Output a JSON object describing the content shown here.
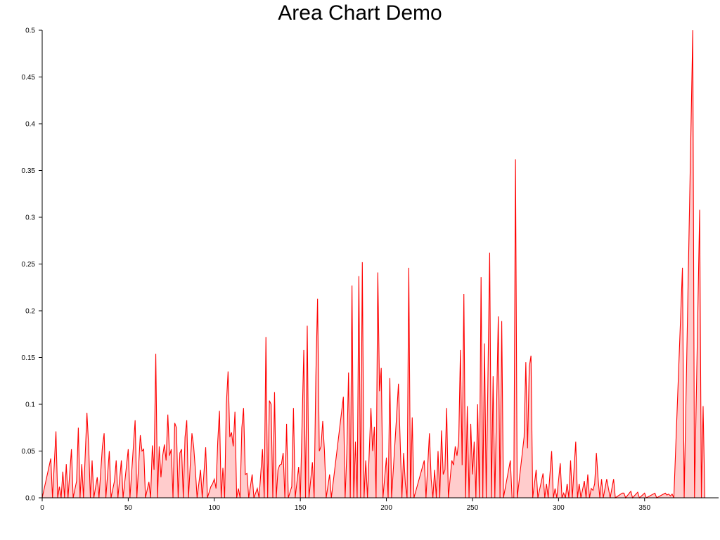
{
  "chart_data": {
    "type": "area",
    "title": "Area Chart Demo",
    "xlabel": "",
    "ylabel": "",
    "xlim": [
      0,
      393
    ],
    "ylim": [
      0,
      0.5
    ],
    "x_ticks": [
      "0",
      "50",
      "100",
      "150",
      "200",
      "250",
      "300",
      "350"
    ],
    "y_ticks": [
      "0.0",
      "0.05",
      "0.1",
      "0.15",
      "0.2",
      "0.25",
      "0.3",
      "0.35",
      "0.4",
      "0.45",
      "0.5"
    ],
    "grid": false,
    "legend": "none",
    "series": [
      {
        "color": "#ff0000",
        "fill": "#ffcccc",
        "points": [
          [
            0,
            0
          ],
          [
            5,
            0.042
          ],
          [
            6,
            0
          ],
          [
            8,
            0.071
          ],
          [
            9,
            0
          ],
          [
            10,
            0.012
          ],
          [
            11,
            0
          ],
          [
            12,
            0.028
          ],
          [
            13,
            0
          ],
          [
            14,
            0.036
          ],
          [
            15,
            0
          ],
          [
            17,
            0.052
          ],
          [
            18,
            0
          ],
          [
            20,
            0.018
          ],
          [
            21,
            0.075
          ],
          [
            22,
            0
          ],
          [
            23,
            0.036
          ],
          [
            24,
            0
          ],
          [
            26,
            0.091
          ],
          [
            27,
            0.055
          ],
          [
            28,
            0
          ],
          [
            29,
            0.04
          ],
          [
            30,
            0
          ],
          [
            32,
            0.022
          ],
          [
            33,
            0
          ],
          [
            35,
            0.055
          ],
          [
            36,
            0.069
          ],
          [
            37,
            0
          ],
          [
            39,
            0.05
          ],
          [
            40,
            0
          ],
          [
            42,
            0.018
          ],
          [
            43,
            0.04
          ],
          [
            44,
            0
          ],
          [
            46,
            0.04
          ],
          [
            47,
            0
          ],
          [
            50,
            0.052
          ],
          [
            51,
            0
          ],
          [
            54,
            0.083
          ],
          [
            55,
            0
          ],
          [
            57,
            0.067
          ],
          [
            58,
            0.05
          ],
          [
            59,
            0.052
          ],
          [
            60,
            0
          ],
          [
            62,
            0.017
          ],
          [
            63,
            0
          ],
          [
            64,
            0.056
          ],
          [
            65,
            0.03
          ],
          [
            66,
            0.154
          ],
          [
            67,
            0
          ],
          [
            68,
            0.055
          ],
          [
            69,
            0.022
          ],
          [
            70,
            0.045
          ],
          [
            71,
            0.057
          ],
          [
            72,
            0.04
          ],
          [
            73,
            0.089
          ],
          [
            74,
            0.045
          ],
          [
            75,
            0.052
          ],
          [
            76,
            0
          ],
          [
            77,
            0.08
          ],
          [
            78,
            0.075
          ],
          [
            79,
            0
          ],
          [
            80,
            0.048
          ],
          [
            81,
            0.052
          ],
          [
            82,
            0
          ],
          [
            83,
            0.065
          ],
          [
            84,
            0.083
          ],
          [
            85,
            0
          ],
          [
            87,
            0.069
          ],
          [
            88,
            0.055
          ],
          [
            89,
            0.03
          ],
          [
            90,
            0
          ],
          [
            92,
            0.03
          ],
          [
            93,
            0
          ],
          [
            95,
            0.054
          ],
          [
            96,
            0
          ],
          [
            98,
            0.012
          ],
          [
            99,
            0.015
          ],
          [
            100,
            0.02
          ],
          [
            101,
            0.01
          ],
          [
            102,
            0.06
          ],
          [
            103,
            0.093
          ],
          [
            104,
            0
          ],
          [
            105,
            0.032
          ],
          [
            106,
            0
          ],
          [
            107,
            0.1
          ],
          [
            108,
            0.135
          ],
          [
            109,
            0.065
          ],
          [
            110,
            0.07
          ],
          [
            111,
            0.055
          ],
          [
            112,
            0.092
          ],
          [
            113,
            0
          ],
          [
            114,
            0.01
          ],
          [
            115,
            0
          ],
          [
            116,
            0.075
          ],
          [
            117,
            0.096
          ],
          [
            118,
            0.025
          ],
          [
            119,
            0.026
          ],
          [
            120,
            0
          ],
          [
            122,
            0.025
          ],
          [
            123,
            0
          ],
          [
            125,
            0.01
          ],
          [
            126,
            0
          ],
          [
            128,
            0.052
          ],
          [
            129,
            0
          ],
          [
            130,
            0.172
          ],
          [
            131,
            0
          ],
          [
            132,
            0.104
          ],
          [
            133,
            0.1
          ],
          [
            134,
            0
          ],
          [
            135,
            0.113
          ],
          [
            136,
            0
          ],
          [
            137,
            0.03
          ],
          [
            138,
            0.035
          ],
          [
            139,
            0.036
          ],
          [
            140,
            0.048
          ],
          [
            141,
            0
          ],
          [
            142,
            0.079
          ],
          [
            143,
            0
          ],
          [
            145,
            0.012
          ],
          [
            146,
            0.096
          ],
          [
            147,
            0
          ],
          [
            149,
            0.033
          ],
          [
            150,
            0
          ],
          [
            152,
            0.158
          ],
          [
            153,
            0
          ],
          [
            154,
            0.184
          ],
          [
            155,
            0
          ],
          [
            157,
            0.038
          ],
          [
            158,
            0
          ],
          [
            159,
            0.13
          ],
          [
            160,
            0.213
          ],
          [
            161,
            0.05
          ],
          [
            162,
            0.055
          ],
          [
            163,
            0.082
          ],
          [
            164,
            0.05
          ],
          [
            165,
            0
          ],
          [
            167,
            0.025
          ],
          [
            168,
            0
          ],
          [
            175,
            0.108
          ],
          [
            176,
            0
          ],
          [
            177,
            0.048
          ],
          [
            178,
            0.134
          ],
          [
            179,
            0
          ],
          [
            180,
            0.227
          ],
          [
            181,
            0
          ],
          [
            182,
            0.06
          ],
          [
            183,
            0
          ],
          [
            184,
            0.237
          ],
          [
            185,
            0
          ],
          [
            186,
            0.252
          ],
          [
            187,
            0
          ],
          [
            188,
            0.04
          ],
          [
            189,
            0
          ],
          [
            191,
            0.096
          ],
          [
            192,
            0.05
          ],
          [
            193,
            0.076
          ],
          [
            194,
            0
          ],
          [
            195,
            0.241
          ],
          [
            196,
            0.114
          ],
          [
            197,
            0.139
          ],
          [
            198,
            0
          ],
          [
            200,
            0.043
          ],
          [
            201,
            0
          ],
          [
            202,
            0.128
          ],
          [
            203,
            0
          ],
          [
            206,
            0.09
          ],
          [
            207,
            0.122
          ],
          [
            208,
            0.06
          ],
          [
            209,
            0
          ],
          [
            210,
            0.048
          ],
          [
            211,
            0.015
          ],
          [
            212,
            0
          ],
          [
            213,
            0.246
          ],
          [
            214,
            0
          ],
          [
            215,
            0.086
          ],
          [
            216,
            0
          ],
          [
            222,
            0.04
          ],
          [
            223,
            0
          ],
          [
            225,
            0.069
          ],
          [
            226,
            0.02
          ],
          [
            227,
            0
          ],
          [
            228,
            0.03
          ],
          [
            229,
            0
          ],
          [
            230,
            0.05
          ],
          [
            231,
            0
          ],
          [
            232,
            0.072
          ],
          [
            233,
            0.025
          ],
          [
            234,
            0.03
          ],
          [
            235,
            0.096
          ],
          [
            236,
            0
          ],
          [
            238,
            0.04
          ],
          [
            239,
            0.035
          ],
          [
            240,
            0.055
          ],
          [
            241,
            0.045
          ],
          [
            242,
            0.06
          ],
          [
            243,
            0.158
          ],
          [
            244,
            0.035
          ],
          [
            245,
            0.218
          ],
          [
            246,
            0
          ],
          [
            247,
            0.098
          ],
          [
            248,
            0
          ],
          [
            249,
            0.079
          ],
          [
            250,
            0.025
          ],
          [
            251,
            0.06
          ],
          [
            252,
            0
          ],
          [
            253,
            0.1
          ],
          [
            254,
            0
          ],
          [
            255,
            0.236
          ],
          [
            256,
            0
          ],
          [
            257,
            0.165
          ],
          [
            258,
            0
          ],
          [
            260,
            0.262
          ],
          [
            261,
            0
          ],
          [
            262,
            0.13
          ],
          [
            263,
            0
          ],
          [
            265,
            0.194
          ],
          [
            266,
            0
          ],
          [
            267,
            0.189
          ],
          [
            268,
            0
          ],
          [
            272,
            0.04
          ],
          [
            273,
            0
          ],
          [
            274,
            0
          ],
          [
            275,
            0.362
          ],
          [
            276,
            0
          ],
          [
            280,
            0.065
          ],
          [
            281,
            0.145
          ],
          [
            282,
            0.053
          ],
          [
            283,
            0.14
          ],
          [
            284,
            0.152
          ],
          [
            285,
            0
          ],
          [
            287,
            0.03
          ],
          [
            288,
            0
          ],
          [
            291,
            0.026
          ],
          [
            292,
            0
          ],
          [
            293,
            0.015
          ],
          [
            294,
            0
          ],
          [
            296,
            0.05
          ],
          [
            297,
            0
          ],
          [
            298,
            0.01
          ],
          [
            299,
            0
          ],
          [
            301,
            0.037
          ],
          [
            302,
            0
          ],
          [
            303,
            0.005
          ],
          [
            304,
            0
          ],
          [
            305,
            0.015
          ],
          [
            306,
            0
          ],
          [
            307,
            0.04
          ],
          [
            308,
            0
          ],
          [
            310,
            0.06
          ],
          [
            311,
            0
          ],
          [
            312,
            0.015
          ],
          [
            313,
            0
          ],
          [
            315,
            0.018
          ],
          [
            316,
            0
          ],
          [
            317,
            0.025
          ],
          [
            318,
            0
          ],
          [
            319,
            0.01
          ],
          [
            320,
            0.008
          ],
          [
            321,
            0.015
          ],
          [
            322,
            0.048
          ],
          [
            323,
            0.02
          ],
          [
            324,
            0
          ],
          [
            325,
            0.02
          ],
          [
            326,
            0
          ],
          [
            328,
            0.02
          ],
          [
            329,
            0.01
          ],
          [
            330,
            0
          ],
          [
            332,
            0.02
          ],
          [
            333,
            0
          ],
          [
            337,
            0.005
          ],
          [
            338,
            0.005
          ],
          [
            339,
            0
          ],
          [
            342,
            0.007
          ],
          [
            343,
            0
          ],
          [
            346,
            0.006
          ],
          [
            347,
            0
          ],
          [
            350,
            0.005
          ],
          [
            351,
            0
          ],
          [
            356,
            0.005
          ],
          [
            357,
            0
          ],
          [
            362,
            0.005
          ],
          [
            363,
            0.003
          ],
          [
            364,
            0.004
          ],
          [
            365,
            0.002
          ],
          [
            366,
            0.004
          ],
          [
            367,
            0
          ],
          [
            372,
            0.246
          ],
          [
            373,
            0
          ],
          [
            378,
            0.5
          ],
          [
            379,
            0
          ],
          [
            382,
            0.308
          ],
          [
            383,
            0
          ],
          [
            384,
            0.098
          ],
          [
            385,
            0
          ],
          [
            393,
            0
          ]
        ]
      }
    ]
  }
}
